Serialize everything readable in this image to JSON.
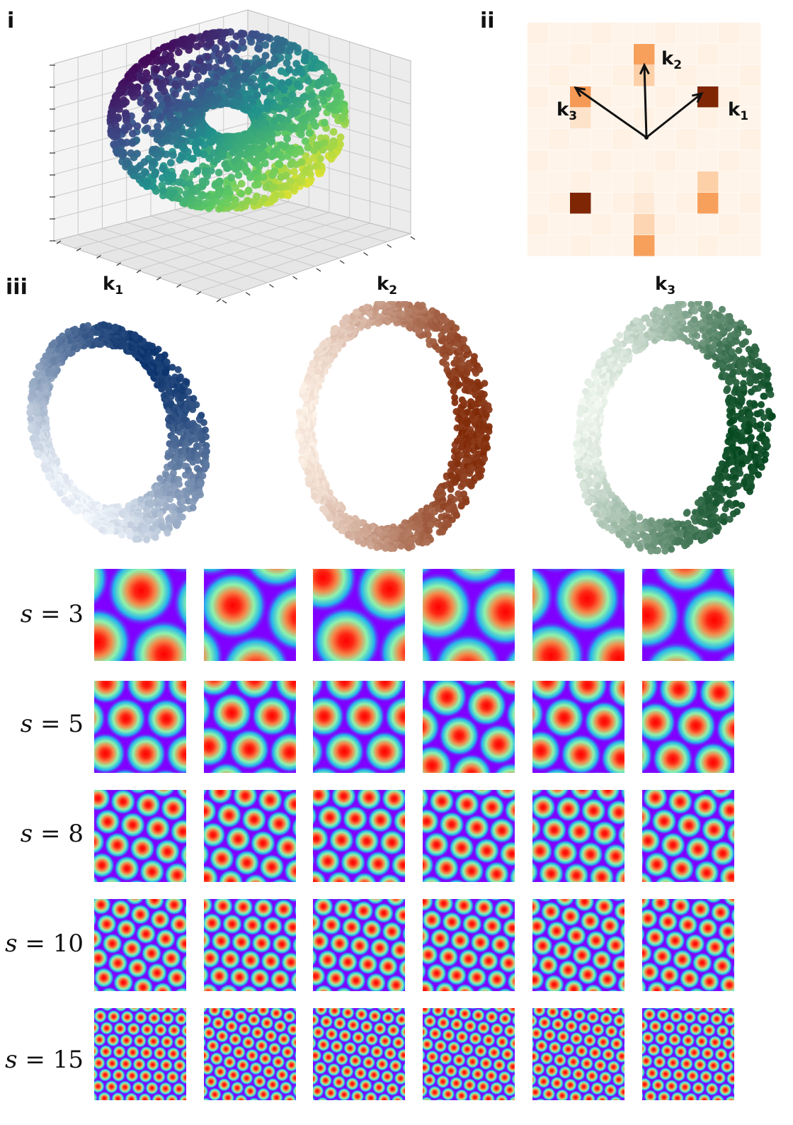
{
  "panels": {
    "p1": "i",
    "p2": "ii",
    "p3": "iii"
  },
  "fourier": {
    "k1": {
      "base": "k",
      "sub": "1"
    },
    "k2": {
      "base": "k",
      "sub": "2"
    },
    "k3": {
      "base": "k",
      "sub": "3"
    }
  },
  "rings": [
    {
      "base": "k",
      "sub": "1",
      "colormap": "blues",
      "colors": [
        "#f7fbff",
        "#08306b"
      ]
    },
    {
      "base": "k",
      "sub": "2",
      "colormap": "oranges",
      "colors": [
        "#fff5eb",
        "#7f2704"
      ]
    },
    {
      "base": "k",
      "sub": "3",
      "colormap": "greens",
      "colors": [
        "#f7fcf5",
        "#00441b"
      ]
    }
  ],
  "rate_maps": {
    "colormap": "rainbow",
    "rows": [
      {
        "var": "s",
        "eq": " = 3",
        "scale": 3
      },
      {
        "var": "s",
        "eq": " = 5",
        "scale": 5
      },
      {
        "var": "s",
        "eq": " = 8",
        "scale": 8
      },
      {
        "var": "s",
        "eq": " = 10",
        "scale": 10
      },
      {
        "var": "s",
        "eq": " = 15",
        "scale": 15
      }
    ],
    "columns": 6
  },
  "torus_colormap": "viridis"
}
